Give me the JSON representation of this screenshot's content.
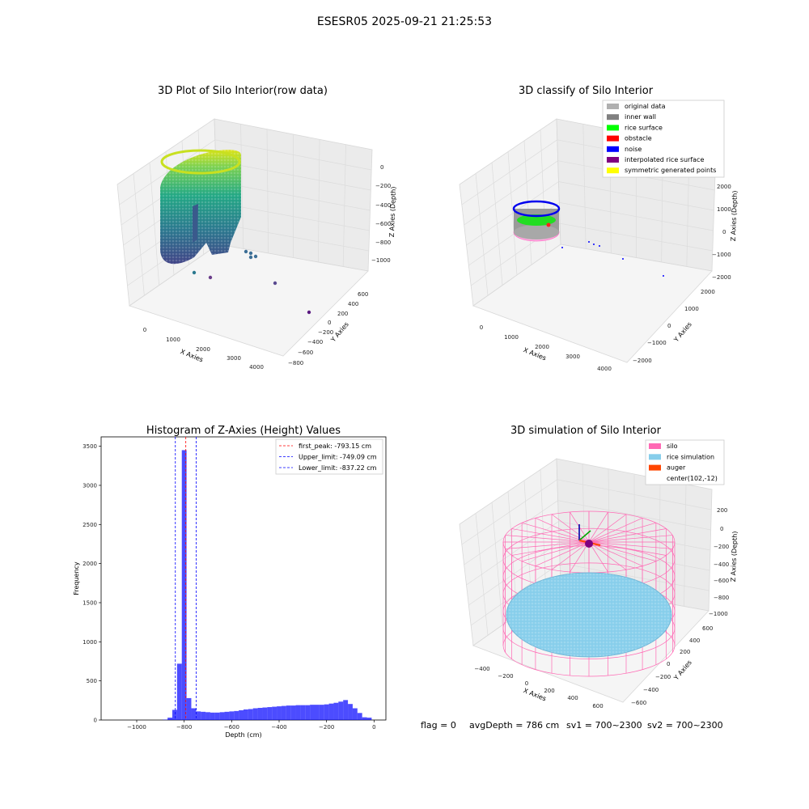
{
  "figure": {
    "suptitle": "ESESR05 2025-09-21 21:25:53",
    "footer": {
      "flag": "flag = 0",
      "avg_depth": "avgDepth = 786 cm",
      "sv1": "sv1 = 700~2300",
      "sv2": "sv2 = 700~2300"
    }
  },
  "chart_data": [
    {
      "type": "scatter",
      "title": "3D Plot of Silo Interior(row data)",
      "xlabel": "X Axies",
      "ylabel": "Y Axies",
      "zlabel": "Z Axies (Depth)",
      "x_ticks": [
        "0",
        "1000",
        "2000",
        "3000",
        "4000"
      ],
      "y_ticks": [
        "600",
        "400",
        "200",
        "0",
        "−200",
        "−400",
        "−600",
        "−800"
      ],
      "z_ticks": [
        "0",
        "−200",
        "−400",
        "−600",
        "−800",
        "−1000"
      ],
      "colormap": "viridis",
      "outlier_points": [
        {
          "x": 1500,
          "y": 150,
          "z": -950
        },
        {
          "x": 2000,
          "y": 180,
          "z": -850
        },
        {
          "x": 2200,
          "y": 200,
          "z": -920
        },
        {
          "x": 1200,
          "y": 100,
          "z": -1000
        },
        {
          "x": 3500,
          "y": 400,
          "z": -1050
        },
        {
          "x": 4200,
          "y": 500,
          "z": -1100
        }
      ]
    },
    {
      "type": "scatter",
      "title": "3D classify of Silo Interior",
      "xlabel": "X Axies",
      "ylabel": "Y Axies",
      "zlabel": "Z Axies (Depth)",
      "x_ticks": [
        "0",
        "1000",
        "2000",
        "3000",
        "4000"
      ],
      "y_ticks": [
        "2000",
        "1000",
        "0",
        "−1000",
        "−2000"
      ],
      "z_ticks": [
        "2000",
        "1000",
        "0",
        "−1000",
        "−2000"
      ],
      "legend": [
        {
          "label": "original data",
          "color": "#b0b0b0"
        },
        {
          "label": "inner wall",
          "color": "#808080"
        },
        {
          "label": "rice surface",
          "color": "#00ff00"
        },
        {
          "label": "obstacle",
          "color": "#ff0000"
        },
        {
          "label": "noise",
          "color": "#0000ff"
        },
        {
          "label": "interpolated rice surface",
          "color": "#800080"
        },
        {
          "label": "symmetric generated points",
          "color": "#ffff00"
        }
      ]
    },
    {
      "type": "bar",
      "title": "Histogram of Z-Axies (Height) Values",
      "xlabel": "Depth (cm)",
      "ylabel": "Frequency",
      "xlim": [
        -1150,
        50
      ],
      "ylim": [
        0,
        3620
      ],
      "x_ticks": [
        -1000,
        -800,
        -600,
        -400,
        -200,
        0
      ],
      "y_ticks": [
        0,
        500,
        1000,
        1500,
        2000,
        2500,
        3000,
        3500
      ],
      "x_tick_labels": [
        "−1000",
        "−800",
        "−600",
        "−400",
        "−200",
        "0"
      ],
      "bin_width": 20,
      "bins": [
        {
          "x": -880,
          "value": 5
        },
        {
          "x": -860,
          "value": 30
        },
        {
          "x": -840,
          "value": 130
        },
        {
          "x": -820,
          "value": 720
        },
        {
          "x": -800,
          "value": 3450
        },
        {
          "x": -780,
          "value": 280
        },
        {
          "x": -760,
          "value": 150
        },
        {
          "x": -740,
          "value": 110
        },
        {
          "x": -720,
          "value": 105
        },
        {
          "x": -700,
          "value": 100
        },
        {
          "x": -680,
          "value": 95
        },
        {
          "x": -660,
          "value": 95
        },
        {
          "x": -640,
          "value": 100
        },
        {
          "x": -620,
          "value": 105
        },
        {
          "x": -600,
          "value": 110
        },
        {
          "x": -580,
          "value": 115
        },
        {
          "x": -560,
          "value": 125
        },
        {
          "x": -540,
          "value": 135
        },
        {
          "x": -520,
          "value": 140
        },
        {
          "x": -500,
          "value": 150
        },
        {
          "x": -480,
          "value": 155
        },
        {
          "x": -460,
          "value": 160
        },
        {
          "x": -440,
          "value": 165
        },
        {
          "x": -420,
          "value": 170
        },
        {
          "x": -400,
          "value": 175
        },
        {
          "x": -380,
          "value": 180
        },
        {
          "x": -360,
          "value": 185
        },
        {
          "x": -340,
          "value": 185
        },
        {
          "x": -320,
          "value": 190
        },
        {
          "x": -300,
          "value": 190
        },
        {
          "x": -280,
          "value": 190
        },
        {
          "x": -260,
          "value": 195
        },
        {
          "x": -240,
          "value": 195
        },
        {
          "x": -220,
          "value": 195
        },
        {
          "x": -200,
          "value": 200
        },
        {
          "x": -180,
          "value": 210
        },
        {
          "x": -160,
          "value": 220
        },
        {
          "x": -140,
          "value": 235
        },
        {
          "x": -120,
          "value": 255
        },
        {
          "x": -100,
          "value": 205
        },
        {
          "x": -80,
          "value": 150
        },
        {
          "x": -60,
          "value": 90
        },
        {
          "x": -40,
          "value": 35
        },
        {
          "x": -20,
          "value": 30
        }
      ],
      "bar_color": "#0000ff",
      "vlines": [
        {
          "label": "first_peak: -793.15 cm",
          "x": -793.15,
          "color": "#ff0000"
        },
        {
          "label": "Upper_limit: -749.09 cm",
          "x": -749.09,
          "color": "#0000ff"
        },
        {
          "label": "Lower_limit: -837.22 cm",
          "x": -837.22,
          "color": "#0000ff"
        }
      ]
    },
    {
      "type": "scatter",
      "title": "3D simulation of Silo Interior",
      "xlabel": "X Axies",
      "ylabel": "Y Axies",
      "zlabel": "Z Axies (Depth)",
      "x_ticks": [
        "−400",
        "−200",
        "0",
        "200",
        "400",
        "600"
      ],
      "y_ticks": [
        "600",
        "400",
        "200",
        "0",
        "−200",
        "−400",
        "−600"
      ],
      "z_ticks": [
        "200",
        "0",
        "−200",
        "−400",
        "−600",
        "−800",
        "−1000"
      ],
      "legend": [
        {
          "label": "silo",
          "color": "#ff69b4"
        },
        {
          "label": "rice simulation",
          "color": "#87ceeb"
        },
        {
          "label": "auger",
          "color": "#ff4500"
        },
        {
          "label": "center(102,-12)",
          "color": ""
        }
      ]
    }
  ]
}
